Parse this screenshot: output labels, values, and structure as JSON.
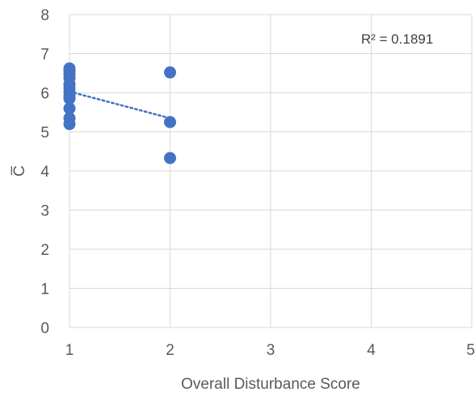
{
  "chart_data": {
    "type": "scatter",
    "xlabel": "Overall Disturbance Score",
    "ylabel": "C̅",
    "xlim": [
      1,
      5
    ],
    "ylim": [
      0,
      8
    ],
    "xticks": [
      "1",
      "2",
      "3",
      "4",
      "5"
    ],
    "yticks": [
      "0",
      "1",
      "2",
      "3",
      "4",
      "5",
      "6",
      "7",
      "8"
    ],
    "grid": true,
    "series": [
      {
        "points": [
          {
            "x": 1,
            "y": 6.62
          },
          {
            "x": 1,
            "y": 6.55
          },
          {
            "x": 1,
            "y": 6.48
          },
          {
            "x": 1,
            "y": 6.38
          },
          {
            "x": 1,
            "y": 6.22
          },
          {
            "x": 1,
            "y": 6.12
          },
          {
            "x": 1,
            "y": 6.02
          },
          {
            "x": 1,
            "y": 5.92
          },
          {
            "x": 1,
            "y": 5.85
          },
          {
            "x": 1,
            "y": 5.6
          },
          {
            "x": 1,
            "y": 5.35
          },
          {
            "x": 1,
            "y": 5.2
          },
          {
            "x": 2,
            "y": 6.52
          },
          {
            "x": 2,
            "y": 5.25
          },
          {
            "x": 2,
            "y": 4.33
          }
        ],
        "color": "#4472C4"
      }
    ],
    "trendline": {
      "type": "linear",
      "x_start": 1,
      "y_start": 6.03,
      "x_end": 2,
      "y_end": 5.35,
      "color": "#4472C4",
      "style": "dotted"
    },
    "annotation": "R² = 0.1891"
  }
}
